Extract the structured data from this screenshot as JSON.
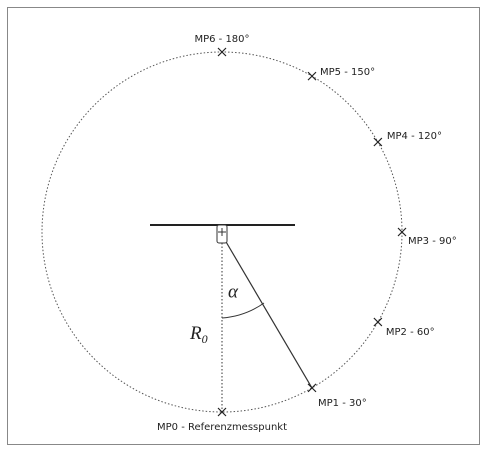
{
  "points": [
    {
      "label": "MP0 - Referenzmesspunkt"
    },
    {
      "label": "MP1 - 30°"
    },
    {
      "label": "MP2 - 60°"
    },
    {
      "label": "MP3 - 90°"
    },
    {
      "label": "MP4 - 120°"
    },
    {
      "label": "MP5 - 150°"
    },
    {
      "label": "MP6 - 180°"
    }
  ],
  "symbols": {
    "angle": "α",
    "radius": "R",
    "radius_subscript": "0"
  }
}
